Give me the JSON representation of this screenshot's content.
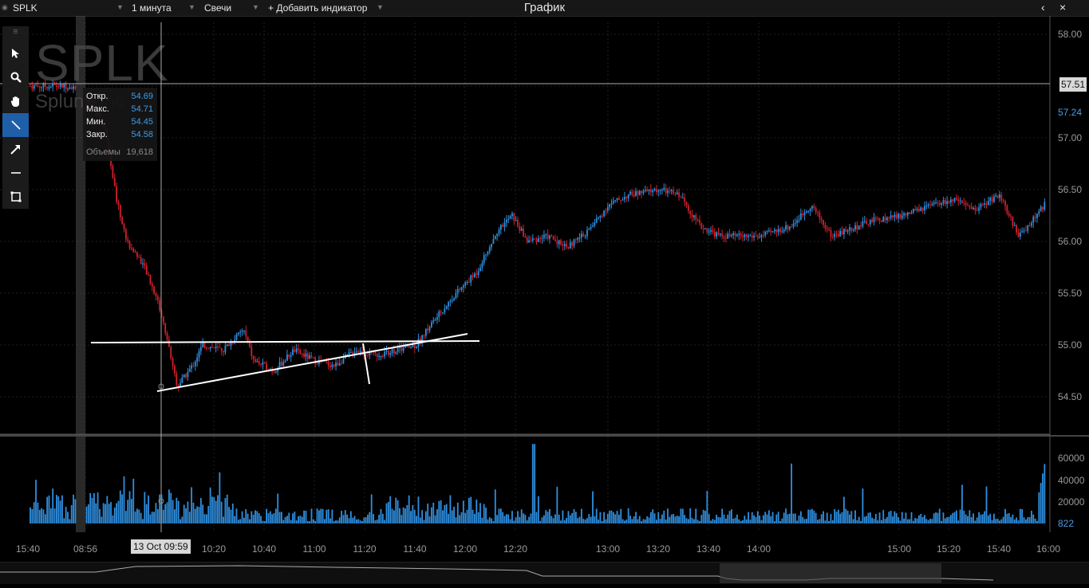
{
  "topbar": {
    "symbol": "SPLK",
    "interval": "1 минута",
    "chart_type": "Свечи",
    "add_indicator": "+ Добавить индикатор",
    "title": "График",
    "back_icon": "chevron-left-icon",
    "close_icon": "close-icon"
  },
  "watermark": {
    "symbol": "SPLK",
    "company": "Splunk Inc"
  },
  "toolbar": {
    "tools": [
      "cursor-arrow-icon",
      "zoom-icon",
      "pan-hand-icon",
      "trend-line-icon",
      "arrow-line-icon",
      "horizontal-line-icon",
      "rectangle-icon"
    ],
    "active_index": 3
  },
  "tooltip": {
    "open_label": "Откр.",
    "open": "54.69",
    "high_label": "Макс.",
    "high": "54.71",
    "low_label": "Мин.",
    "low": "54.45",
    "close_label": "Закр.",
    "close": "54.58",
    "volume_label": "Объемы",
    "volume": "19,618"
  },
  "price_axis": {
    "ticks": [
      "58.00",
      "57.51",
      "57.24",
      "57.00",
      "56.50",
      "56.00",
      "55.50",
      "55.00",
      "54.50"
    ],
    "current_price": "57.51",
    "highlight_price": "57.24"
  },
  "volume_axis": {
    "ticks": [
      "60000",
      "40000",
      "20000"
    ],
    "last_label": "822"
  },
  "time_axis": {
    "ticks": [
      "15:40",
      "08:56",
      "10:20",
      "10:40",
      "11:00",
      "11:20",
      "11:40",
      "12:00",
      "12:20",
      "13:00",
      "13:20",
      "13:40",
      "14:00",
      "15:00",
      "15:20",
      "15:40",
      "16:00"
    ],
    "cursor_label": "13 Oct 09:59"
  },
  "colors": {
    "up": "#2f8fe0",
    "down": "#d0212b",
    "volume": "#2f8fe0",
    "drawing": "#ffffff",
    "active_tool": "#1f5fa8"
  },
  "chart_data": {
    "type": "candlestick",
    "symbol": "SPLK",
    "interval": "1 минута",
    "y_range": [
      54.2,
      58.05
    ],
    "volume_range": [
      0,
      70000
    ],
    "price_path": [
      [
        0.0,
        57.5
      ],
      [
        0.04,
        57.5
      ],
      [
        0.06,
        57.35
      ],
      [
        0.075,
        57.05
      ],
      [
        0.085,
        56.4
      ],
      [
        0.095,
        56.0
      ],
      [
        0.11,
        55.8
      ],
      [
        0.125,
        55.45
      ],
      [
        0.135,
        55.05
      ],
      [
        0.145,
        54.6
      ],
      [
        0.16,
        54.8
      ],
      [
        0.17,
        55.0
      ],
      [
        0.19,
        54.95
      ],
      [
        0.21,
        55.15
      ],
      [
        0.22,
        54.85
      ],
      [
        0.24,
        54.75
      ],
      [
        0.26,
        54.95
      ],
      [
        0.28,
        54.85
      ],
      [
        0.3,
        54.8
      ],
      [
        0.32,
        54.95
      ],
      [
        0.34,
        54.9
      ],
      [
        0.36,
        54.95
      ],
      [
        0.38,
        55.0
      ],
      [
        0.395,
        55.2
      ],
      [
        0.42,
        55.5
      ],
      [
        0.44,
        55.7
      ],
      [
        0.46,
        56.1
      ],
      [
        0.475,
        56.25
      ],
      [
        0.49,
        56.0
      ],
      [
        0.51,
        56.05
      ],
      [
        0.53,
        55.95
      ],
      [
        0.55,
        56.1
      ],
      [
        0.57,
        56.35
      ],
      [
        0.59,
        56.45
      ],
      [
        0.62,
        56.5
      ],
      [
        0.64,
        56.45
      ],
      [
        0.66,
        56.15
      ],
      [
        0.68,
        56.05
      ],
      [
        0.72,
        56.05
      ],
      [
        0.75,
        56.15
      ],
      [
        0.77,
        56.35
      ],
      [
        0.79,
        56.05
      ],
      [
        0.83,
        56.2
      ],
      [
        0.86,
        56.25
      ],
      [
        0.89,
        56.35
      ],
      [
        0.91,
        56.4
      ],
      [
        0.93,
        56.3
      ],
      [
        0.955,
        56.45
      ],
      [
        0.975,
        56.05
      ],
      [
        1.0,
        56.35
      ]
    ],
    "annotations": [
      {
        "type": "horizontal-trend-line",
        "from": [
          "09:47",
          55.01
        ],
        "to": [
          "12:21",
          55.01
        ]
      },
      {
        "type": "ascending-trend-line",
        "from": [
          "09:59",
          54.53
        ],
        "to": [
          "12:00",
          55.1
        ]
      },
      {
        "type": "short-line",
        "from": [
          "11:20",
          55.0
        ],
        "to": [
          "11:22",
          54.58
        ]
      }
    ]
  }
}
